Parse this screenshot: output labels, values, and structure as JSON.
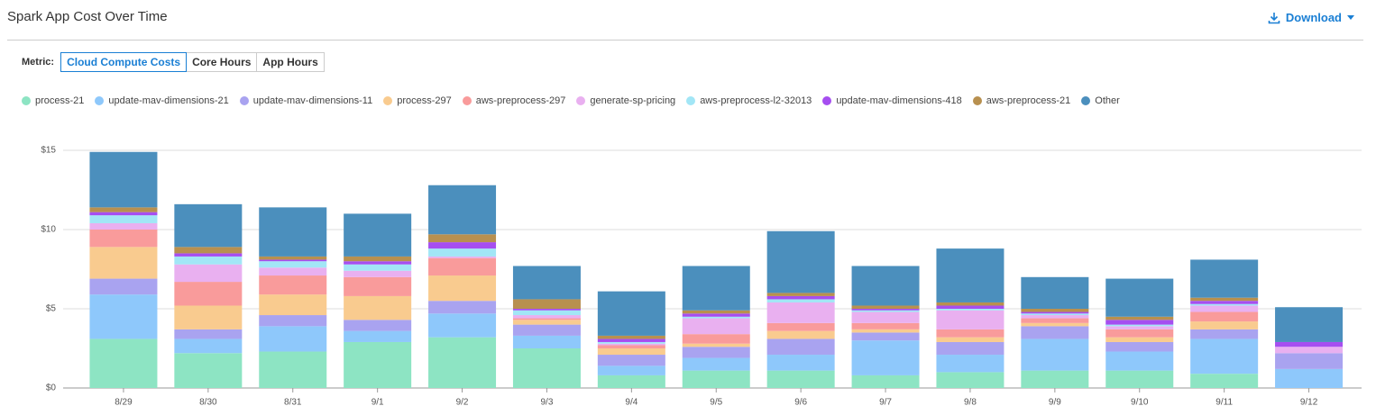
{
  "header": {
    "title": "Spark App Cost Over Time",
    "download": "Download"
  },
  "controls": {
    "label": "Metric:",
    "options": [
      "Cloud Compute Costs",
      "Core Hours",
      "App Hours"
    ],
    "selected": 0
  },
  "chart_data": {
    "type": "stacked_bar",
    "categories": [
      "8/29",
      "8/30",
      "8/31",
      "9/1",
      "9/2",
      "9/3",
      "9/4",
      "9/5",
      "9/6",
      "9/7",
      "9/8",
      "9/9",
      "9/10",
      "9/11",
      "9/12"
    ],
    "series": [
      {
        "name": "process-21",
        "color": "#8de4c3",
        "values": [
          3.1,
          2.2,
          2.3,
          2.9,
          3.2,
          2.5,
          0.8,
          1.1,
          1.1,
          0.8,
          1.0,
          1.1,
          1.1,
          0.9,
          0
        ]
      },
      {
        "name": "update-mav-dimensions-21",
        "color": "#8ec8fb",
        "values": [
          2.8,
          0.9,
          1.6,
          0.7,
          1.5,
          0.8,
          0.6,
          0.8,
          1.0,
          2.2,
          1.1,
          2.0,
          1.2,
          2.2,
          1.2
        ]
      },
      {
        "name": "update-mav-dimensions-11",
        "color": "#a9a3f0",
        "values": [
          1.0,
          0.6,
          0.7,
          0.7,
          0.8,
          0.7,
          0.7,
          0.7,
          1.0,
          0.5,
          0.8,
          0.8,
          0.6,
          0.6,
          1.0
        ]
      },
      {
        "name": "process-297",
        "color": "#f9cb8f",
        "values": [
          2.0,
          1.5,
          1.3,
          1.5,
          1.6,
          0.3,
          0.4,
          0.2,
          0.5,
          0.2,
          0.3,
          0.2,
          0.3,
          0.5,
          0
        ]
      },
      {
        "name": "aws-preprocess-297",
        "color": "#f99b9b",
        "values": [
          1.1,
          1.5,
          1.2,
          1.2,
          1.1,
          0.1,
          0.2,
          0.6,
          0.5,
          0.4,
          0.5,
          0.3,
          0.5,
          0.6,
          0
        ]
      },
      {
        "name": "generate-sp-pricing",
        "color": "#e9b0f0",
        "values": [
          0.4,
          1.1,
          0.5,
          0.4,
          0.1,
          0.2,
          0.1,
          1.0,
          1.3,
          0.7,
          1.2,
          0.2,
          0.2,
          0.4,
          0.4
        ]
      },
      {
        "name": "aws-preprocess-l2-32013",
        "color": "#a2e6f6",
        "values": [
          0.5,
          0.5,
          0.4,
          0.4,
          0.5,
          0.3,
          0.1,
          0.1,
          0.2,
          0.1,
          0.1,
          0.1,
          0.1,
          0.1,
          0
        ]
      },
      {
        "name": "update-mav-dimensions-418",
        "color": "#a64ef0",
        "values": [
          0.2,
          0.2,
          0.1,
          0.2,
          0.4,
          0.1,
          0.2,
          0.2,
          0.2,
          0.1,
          0.2,
          0.1,
          0.3,
          0.2,
          0.3
        ]
      },
      {
        "name": "aws-preprocess-21",
        "color": "#b8904f",
        "values": [
          0.3,
          0.4,
          0.2,
          0.3,
          0.5,
          0.6,
          0.2,
          0.2,
          0.2,
          0.2,
          0.2,
          0.2,
          0.2,
          0.2,
          0
        ]
      },
      {
        "name": "Other",
        "color": "#4b8fbd",
        "values": [
          3.5,
          2.7,
          3.1,
          2.7,
          3.1,
          2.1,
          2.8,
          2.8,
          3.9,
          2.5,
          3.4,
          2.0,
          2.4,
          2.4,
          2.2
        ]
      }
    ],
    "ylim": [
      0,
      16
    ],
    "yticks": [
      {
        "value": 0,
        "label": "$0"
      },
      {
        "value": 5,
        "label": "$5"
      },
      {
        "value": 10,
        "label": "$10"
      },
      {
        "value": 15,
        "label": "$15"
      }
    ],
    "grid": true
  }
}
